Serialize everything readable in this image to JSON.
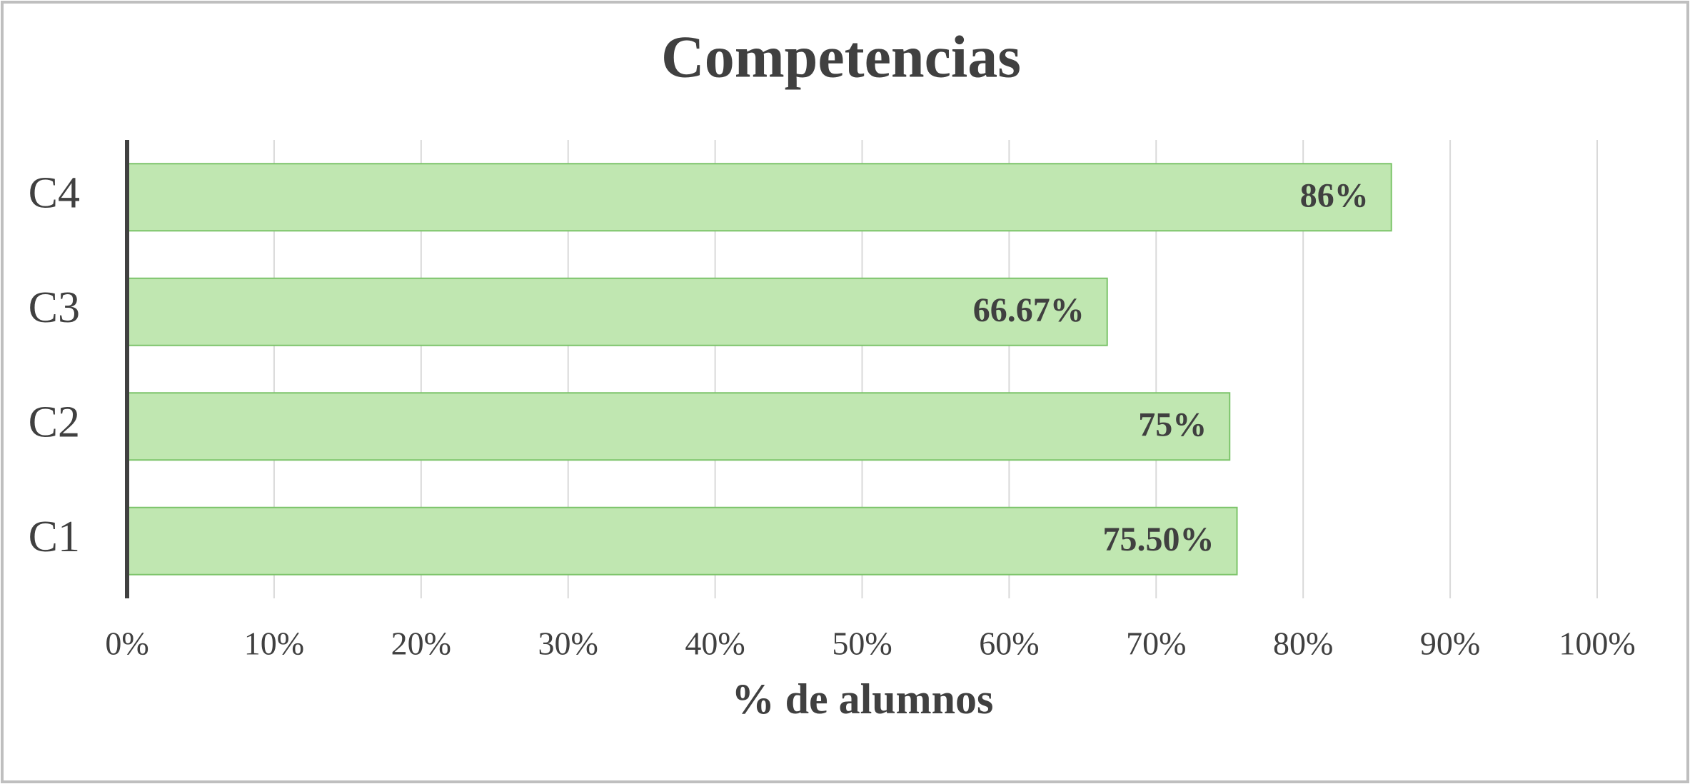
{
  "chart_data": {
    "type": "barh",
    "title": "Competencias",
    "xlabel": "% de alumnos",
    "categories": [
      "C1",
      "C2",
      "C3",
      "C4"
    ],
    "values": [
      75.5,
      75,
      66.67,
      86
    ],
    "value_labels": [
      "75.50%",
      "75%",
      "66.67%",
      "86%"
    ],
    "color": "#c0e7b1",
    "xlim": [
      0,
      100
    ],
    "xticks": [
      {
        "value": 0,
        "label": "0%"
      },
      {
        "value": 10,
        "label": "10%"
      },
      {
        "value": 20,
        "label": "20%"
      },
      {
        "value": 30,
        "label": "30%"
      },
      {
        "value": 40,
        "label": "40%"
      },
      {
        "value": 50,
        "label": "50%"
      },
      {
        "value": 60,
        "label": "60%"
      },
      {
        "value": 70,
        "label": "70%"
      },
      {
        "value": 80,
        "label": "80%"
      },
      {
        "value": 90,
        "label": "90%"
      },
      {
        "value": 100,
        "label": "100%"
      }
    ],
    "grid": true
  }
}
